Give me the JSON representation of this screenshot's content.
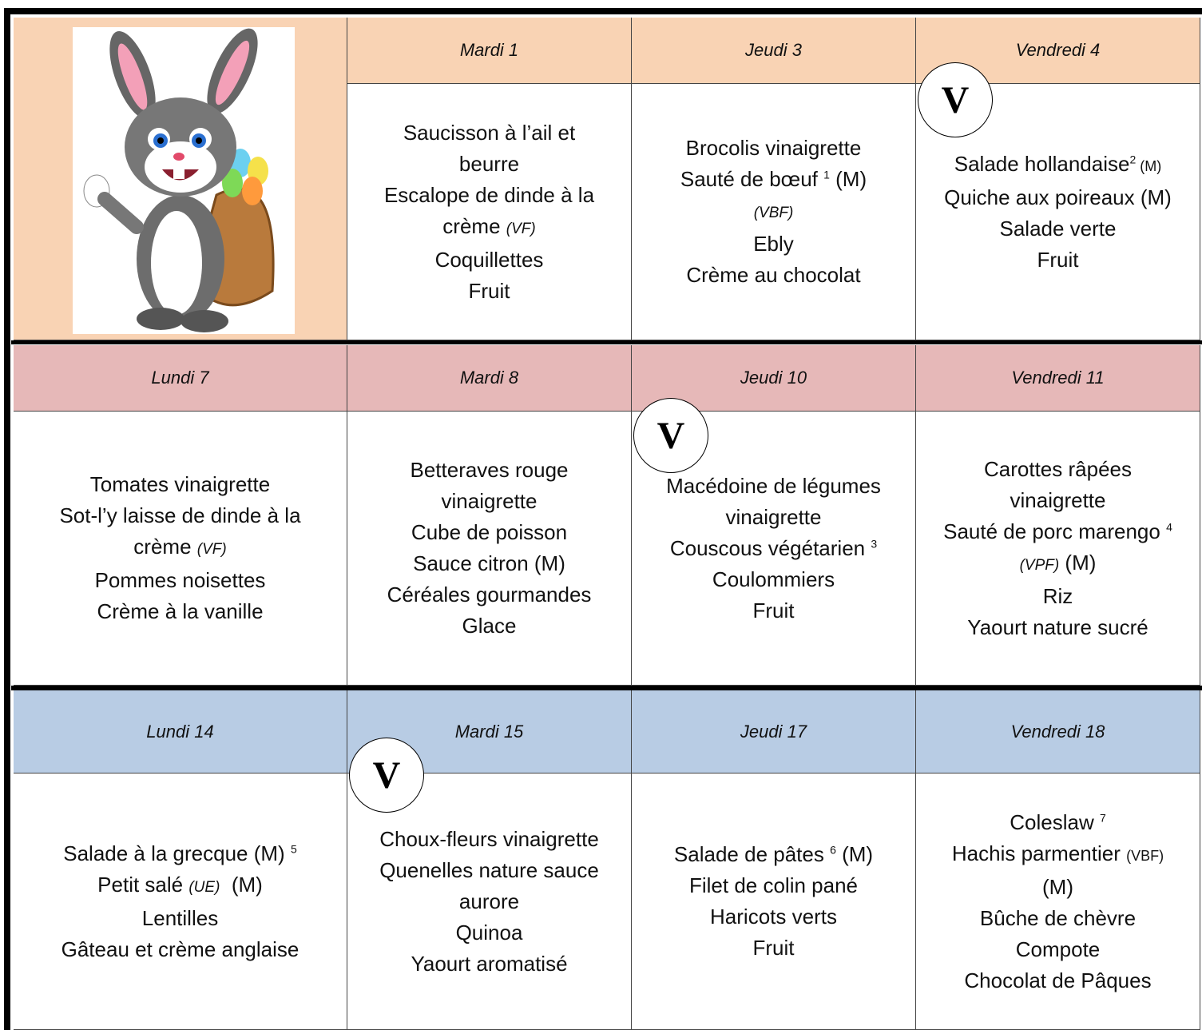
{
  "weeks": [
    {
      "days": [
        {
          "date": "Mardi 1",
          "menu": [
            [
              "Saucisson à l’ail et"
            ],
            [
              "beurre"
            ],
            [
              "Escalope de dinde à la"
            ],
            [
              "crème ",
              {
                "italic": "(VF)"
              }
            ],
            [
              "Coquillettes"
            ],
            [
              "Fruit"
            ]
          ]
        },
        {
          "date": "Jeudi 3",
          "menu": [
            [
              "Brocolis vinaigrette"
            ],
            [
              "Sauté de bœuf ",
              {
                "sup": "1"
              },
              " (M)"
            ],
            [
              {
                "italic": "(VBF)"
              }
            ],
            [
              "Ebly"
            ],
            [
              "Crème au chocolat"
            ]
          ]
        },
        {
          "date": "Vendredi 4",
          "badge": "V",
          "menu": [
            [
              "Salade hollandaise",
              {
                "sup": "2"
              },
              {
                "small": " (M)"
              }
            ],
            [
              "Quiche aux poireaux (M)"
            ],
            [
              "Salade verte"
            ],
            [
              "Fruit"
            ]
          ]
        }
      ]
    },
    {
      "days": [
        {
          "date": "Lundi 7",
          "menu": [
            [
              "Tomates vinaigrette"
            ],
            [
              "Sot-l’y laisse de dinde à la"
            ],
            [
              "crème ",
              {
                "italic": "(VF)"
              }
            ],
            [
              "Pommes noisettes"
            ],
            [
              "Crème à la vanille"
            ]
          ]
        },
        {
          "date": "Mardi 8",
          "menu": [
            [
              "Betteraves rouge"
            ],
            [
              "vinaigrette"
            ],
            [
              "Cube de poisson"
            ],
            [
              "Sauce citron (M)"
            ],
            [
              "Céréales gourmandes"
            ],
            [
              "Glace"
            ]
          ]
        },
        {
          "date": "Jeudi 10",
          "badge": "V",
          "menu": [
            [
              "Macédoine de légumes"
            ],
            [
              "vinaigrette"
            ],
            [
              "Couscous végétarien ",
              {
                "sup": "3"
              }
            ],
            [
              "Coulommiers"
            ],
            [
              "Fruit"
            ]
          ]
        },
        {
          "date": "Vendredi 11",
          "menu": [
            [
              "Carottes râpées"
            ],
            [
              "vinaigrette"
            ],
            [
              "Sauté de porc marengo ",
              {
                "sup": "4"
              }
            ],
            [
              {
                "italic": "(VPF)"
              },
              " (M)"
            ],
            [
              "Riz"
            ],
            [
              "Yaourt nature sucré"
            ]
          ]
        }
      ]
    },
    {
      "days": [
        {
          "date": "Lundi 14",
          "menu": [
            [
              "Salade à la grecque (M) ",
              {
                "sup": "5"
              }
            ],
            [
              "Petit salé ",
              {
                "italic": "(UE)"
              },
              "  (M)"
            ],
            [
              "Lentilles"
            ],
            [
              "Gâteau et crème anglaise"
            ]
          ]
        },
        {
          "date": "Mardi 15",
          "badge": "V",
          "menu": [
            [
              "Choux-fleurs vinaigrette"
            ],
            [
              "Quenelles nature sauce"
            ],
            [
              "aurore"
            ],
            [
              "Quinoa"
            ],
            [
              "Yaourt aromatisé"
            ]
          ]
        },
        {
          "date": "Jeudi 17",
          "menu": [
            [
              "Salade de pâtes ",
              {
                "sup": "6"
              },
              " (M)"
            ],
            [
              "Filet de colin pané"
            ],
            [
              "Haricots verts"
            ],
            [
              "Fruit"
            ]
          ]
        },
        {
          "date": "Vendredi 18",
          "menu": [
            [
              "Coleslaw ",
              {
                "sup": "7"
              }
            ],
            [
              "Hachis parmentier ",
              {
                "small": "(VBF)"
              }
            ],
            [
              "(M)"
            ],
            [
              "Bûche de chèvre"
            ],
            [
              "Compote"
            ],
            [
              "Chocolat de Pâques"
            ]
          ]
        }
      ]
    }
  ]
}
